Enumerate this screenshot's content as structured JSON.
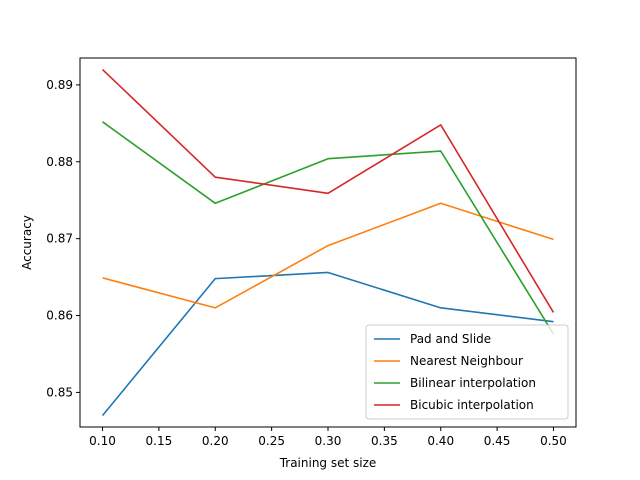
{
  "chart_data": {
    "type": "line",
    "title": "",
    "xlabel": "Training set size",
    "ylabel": "Accuracy",
    "x": [
      0.1,
      0.2,
      0.3,
      0.4,
      0.5
    ],
    "xlim": [
      0.08,
      0.52
    ],
    "ylim": [
      0.8455,
      0.8935
    ],
    "x_ticks": [
      "0.10",
      "0.15",
      "0.20",
      "0.25",
      "0.30",
      "0.35",
      "0.40",
      "0.45",
      "0.50"
    ],
    "y_ticks": [
      "0.85",
      "0.86",
      "0.87",
      "0.88",
      "0.89"
    ],
    "grid": false,
    "legend_position": "lower-right",
    "series": [
      {
        "name": "Pad and Slide",
        "color": "#1f77b4",
        "values": [
          0.847,
          0.8648,
          0.8656,
          0.861,
          0.8592
        ]
      },
      {
        "name": "Nearest Neighbour",
        "color": "#ff7f0e",
        "values": [
          0.8649,
          0.861,
          0.8691,
          0.8746,
          0.8699
        ]
      },
      {
        "name": "Bilinear interpolation",
        "color": "#2ca02c",
        "values": [
          0.8852,
          0.8746,
          0.8804,
          0.8814,
          0.8576
        ]
      },
      {
        "name": "Bicubic interpolation",
        "color": "#d62728",
        "values": [
          0.892,
          0.878,
          0.8759,
          0.8848,
          0.8604
        ]
      }
    ]
  }
}
